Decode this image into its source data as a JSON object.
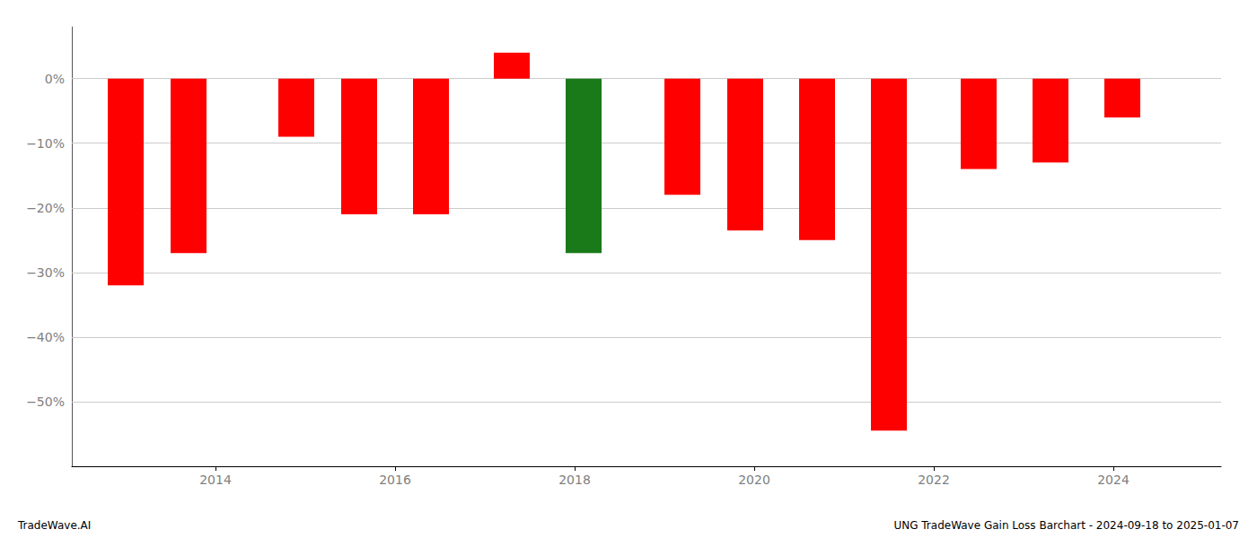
{
  "chart_data": {
    "type": "bar",
    "x": [
      2013.0,
      2013.7,
      2014.9,
      2015.6,
      2016.4,
      2017.3,
      2018.1,
      2019.2,
      2019.9,
      2020.7,
      2021.5,
      2022.5,
      2023.3,
      2024.1
    ],
    "values": [
      -32.0,
      -27.0,
      -9.0,
      -21.0,
      -21.0,
      4.0,
      -27.0,
      -18.0,
      -23.5,
      -25.0,
      -54.5,
      -14.0,
      -13.0,
      -6.0
    ],
    "colors": [
      "#FF0000",
      "#FF0000",
      "#FF0000",
      "#FF0000",
      "#FF0000",
      "#FF0000",
      "#1A7A1A",
      "#FF0000",
      "#FF0000",
      "#FF0000",
      "#FF0000",
      "#FF0000",
      "#FF0000",
      "#FF0000"
    ],
    "xlim": [
      2012.4,
      2025.2
    ],
    "xticks": [
      2014,
      2016,
      2018,
      2020,
      2022,
      2024
    ],
    "ylim": [
      -60,
      8
    ],
    "yticks": [
      {
        "value": 0,
        "label": "0%"
      },
      {
        "value": -10,
        "label": "−10%"
      },
      {
        "value": -20,
        "label": "−20%"
      },
      {
        "value": -30,
        "label": "−30%"
      },
      {
        "value": -40,
        "label": "−40%"
      },
      {
        "value": -50,
        "label": "−50%"
      }
    ],
    "grid": true,
    "annotations": [
      "TradeWave.AI",
      "UNG TradeWave Gain Loss Barchart - 2024-09-18 to 2025-01-07"
    ]
  }
}
